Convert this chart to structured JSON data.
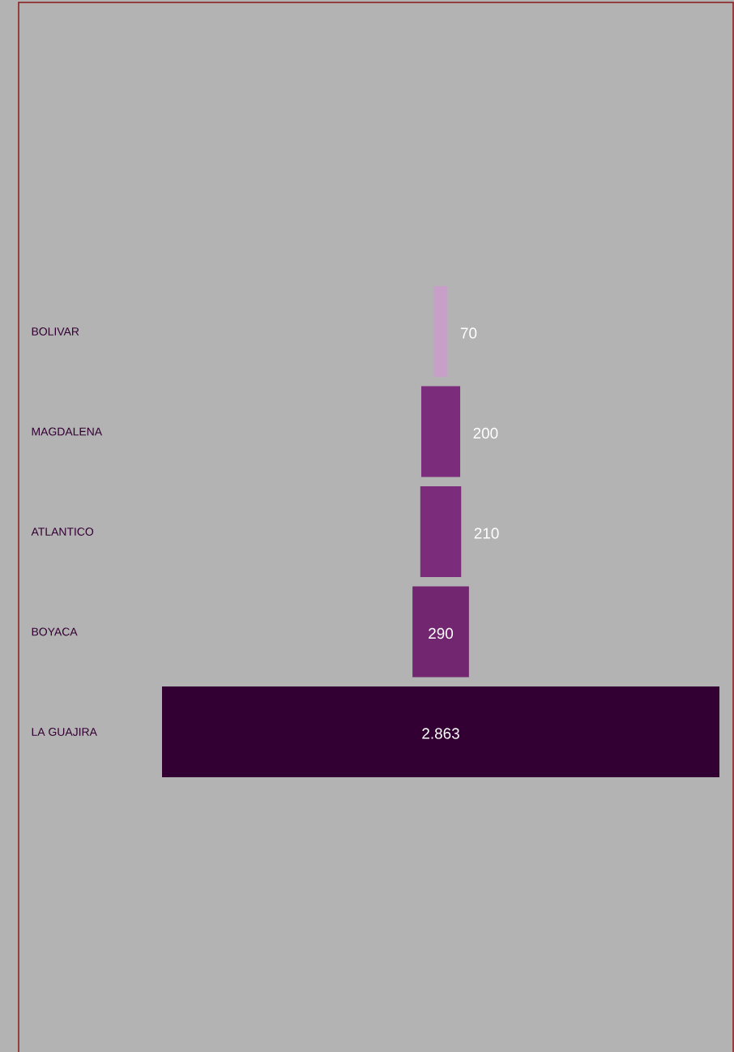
{
  "chart_data": {
    "type": "other",
    "categories": [
      "BOLIVAR",
      "MAGDALENA",
      "ATLANTICO",
      "BOYACA",
      "LA GUAJIRA"
    ],
    "values": [
      70,
      200,
      210,
      290,
      2863
    ],
    "colors": [
      "#c89fc9",
      "#7b2d7b",
      "#7b2d7b",
      "#722670",
      "#330033"
    ],
    "value_labels": [
      "70",
      "200",
      "210",
      "290",
      "2.863"
    ]
  }
}
